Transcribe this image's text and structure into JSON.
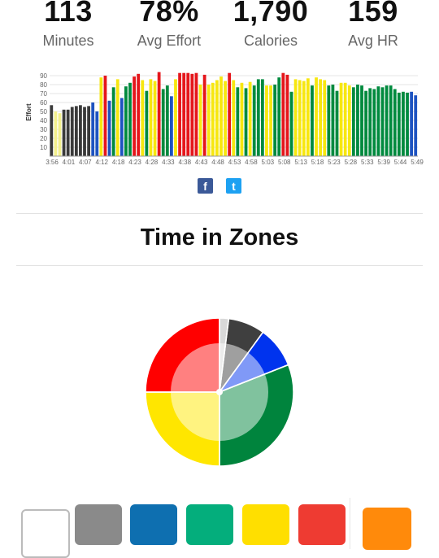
{
  "stats": [
    {
      "value": "113",
      "label": "Minutes"
    },
    {
      "value": "78%",
      "label": "Avg Effort"
    },
    {
      "value": "1,790",
      "label": "Calories"
    },
    {
      "value": "159",
      "label": "Avg HR"
    }
  ],
  "chart_data": {
    "type": "bar",
    "ylabel": "Effort",
    "yticks": [
      10,
      20,
      30,
      40,
      50,
      60,
      70,
      80,
      90
    ],
    "ylim": [
      0,
      100
    ],
    "x_tick_labels": [
      "3:56",
      "4:01",
      "4:07",
      "4:12",
      "4:18",
      "4:23",
      "4:28",
      "4:33",
      "4:38",
      "4:43",
      "4:48",
      "4:53",
      "4:58",
      "5:03",
      "5:08",
      "5:13",
      "5:18",
      "5:23",
      "5:28",
      "5:33",
      "5:39",
      "5:44",
      "5:49"
    ],
    "values": [
      57,
      50,
      48,
      52,
      52,
      55,
      56,
      57,
      55,
      56,
      60,
      50,
      88,
      90,
      62,
      77,
      86,
      65,
      78,
      82,
      89,
      92,
      85,
      73,
      86,
      84,
      94,
      75,
      79,
      67,
      86,
      93,
      93,
      93,
      92,
      93,
      80,
      91,
      80,
      82,
      85,
      89,
      84,
      93,
      85,
      77,
      82,
      76,
      83,
      79,
      86,
      86,
      79,
      79,
      80,
      88,
      93,
      91,
      72,
      86,
      85,
      84,
      87,
      79,
      88,
      86,
      85,
      79,
      80,
      73,
      82,
      82,
      79,
      77,
      80,
      79,
      73,
      76,
      75,
      78,
      77,
      79,
      79,
      75,
      71,
      72,
      71,
      72,
      68
    ],
    "zones": [
      4,
      2,
      2,
      4,
      4,
      4,
      4,
      4,
      4,
      4,
      3,
      3,
      1,
      0,
      3,
      5,
      1,
      3,
      5,
      5,
      0,
      0,
      1,
      5,
      1,
      1,
      0,
      5,
      5,
      3,
      1,
      0,
      0,
      0,
      0,
      0,
      1,
      0,
      1,
      1,
      1,
      1,
      1,
      0,
      1,
      5,
      1,
      5,
      1,
      5,
      5,
      5,
      1,
      1,
      5,
      5,
      0,
      0,
      5,
      1,
      1,
      1,
      1,
      5,
      1,
      1,
      1,
      5,
      5,
      5,
      1,
      1,
      1,
      5,
      5,
      5,
      5,
      5,
      5,
      5,
      5,
      5,
      5,
      5,
      5,
      5,
      5,
      3,
      3
    ],
    "zone_colors": [
      "#e5161b",
      "#f7e70f",
      "#f3f08c",
      "#1e53c0",
      "#3a3a3a",
      "#008a3e"
    ]
  },
  "share": {
    "facebook": "f",
    "twitter": "t"
  },
  "zones_section": {
    "title": "Time in Zones"
  },
  "pie_data": {
    "type": "pie",
    "slices": [
      {
        "color": "#d9d9d9",
        "value": 2
      },
      {
        "color": "#3f3f3f",
        "value": 8
      },
      {
        "color": "#0033ee",
        "value": 9
      },
      {
        "color": "#00843d",
        "value": 31
      },
      {
        "color": "#ffe600",
        "value": 25
      },
      {
        "color": "#ff0000",
        "value": 25
      }
    ]
  },
  "swatches": [
    {
      "name": "white",
      "color": "#ffffff"
    },
    {
      "name": "gray",
      "color": "#8a8a8a"
    },
    {
      "name": "blue",
      "color": "#0e6fb0"
    },
    {
      "name": "green",
      "color": "#04ae7c"
    },
    {
      "name": "yellow",
      "color": "#ffdf00"
    },
    {
      "name": "red",
      "color": "#ee3b32"
    },
    {
      "name": "orange",
      "color": "#ff8a0b"
    }
  ]
}
